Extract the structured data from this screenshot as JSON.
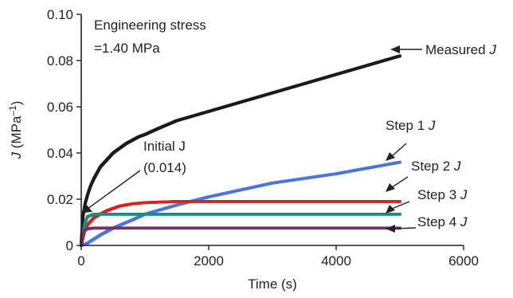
{
  "chart_data": {
    "type": "scatter",
    "xlabel": "Time (s)",
    "ylabel": {
      "symbol": "J",
      "rest": " (MPa",
      "sup": "–1",
      "close": ")"
    },
    "xlim": [
      0,
      6000
    ],
    "ylim": [
      0,
      0.1
    ],
    "x_ticks": [
      {
        "value": 0,
        "label": "0"
      },
      {
        "value": 2000,
        "label": "2000"
      },
      {
        "value": 4000,
        "label": "4000"
      },
      {
        "value": 6000,
        "label": "6000"
      }
    ],
    "y_ticks": [
      {
        "value": 0,
        "label": "0"
      },
      {
        "value": 0.02,
        "label": "0.02"
      },
      {
        "value": 0.04,
        "label": "0.04"
      },
      {
        "value": 0.06,
        "label": "0.06"
      },
      {
        "value": 0.08,
        "label": "0.08"
      },
      {
        "value": 0.1,
        "label": "0.10"
      }
    ],
    "grid": false,
    "annotations": {
      "stress_line1": "Engineering stress",
      "stress_line2": "=1.40 MPa",
      "initial_line1": "Initial J",
      "initial_line2": "(0.014)"
    },
    "series": [
      {
        "name": "Measured J",
        "label_text": "Measured ",
        "label_italic": "J",
        "color": "#1a1a1a",
        "points": [
          [
            0,
            0.001
          ],
          [
            10,
            0.006
          ],
          [
            30,
            0.013
          ],
          [
            60,
            0.018
          ],
          [
            100,
            0.022
          ],
          [
            150,
            0.026
          ],
          [
            200,
            0.029
          ],
          [
            300,
            0.034
          ],
          [
            400,
            0.037
          ],
          [
            500,
            0.04
          ],
          [
            700,
            0.044
          ],
          [
            900,
            0.047
          ],
          [
            1000,
            0.048
          ],
          [
            1200,
            0.0505
          ],
          [
            1500,
            0.054
          ],
          [
            2000,
            0.058
          ],
          [
            2500,
            0.062
          ],
          [
            3000,
            0.066
          ],
          [
            3500,
            0.07
          ],
          [
            4000,
            0.074
          ],
          [
            4500,
            0.078
          ],
          [
            5000,
            0.082
          ]
        ],
        "label_value": [
          5000,
          0.083
        ]
      },
      {
        "name": "Step 1 J",
        "label_text": "Step 1 ",
        "label_italic": "J",
        "color": "#4a74e0",
        "points": [
          [
            0,
            0.0
          ],
          [
            100,
            0.001
          ],
          [
            300,
            0.0045
          ],
          [
            500,
            0.0075
          ],
          [
            800,
            0.011
          ],
          [
            1000,
            0.0135
          ],
          [
            1500,
            0.0175
          ],
          [
            2000,
            0.021
          ],
          [
            2500,
            0.024
          ],
          [
            3000,
            0.027
          ],
          [
            3500,
            0.029
          ],
          [
            4000,
            0.031
          ],
          [
            4500,
            0.0335
          ],
          [
            5000,
            0.036
          ]
        ],
        "label_value": [
          5000,
          0.037
        ]
      },
      {
        "name": "Step 2 J",
        "label_text": "Step 2 ",
        "label_italic": "J",
        "color": "#d9221e",
        "points": [
          [
            0,
            0.0
          ],
          [
            50,
            0.006
          ],
          [
            100,
            0.009
          ],
          [
            200,
            0.012
          ],
          [
            400,
            0.015
          ],
          [
            600,
            0.017
          ],
          [
            800,
            0.018
          ],
          [
            1000,
            0.0185
          ],
          [
            1500,
            0.019
          ],
          [
            2000,
            0.019
          ],
          [
            5000,
            0.019
          ]
        ],
        "label_value": [
          5000,
          0.019
        ]
      },
      {
        "name": "Step 3 J",
        "label_text": "Step 3 ",
        "label_italic": "J",
        "color": "#1a8c83",
        "points": [
          [
            0,
            0.0
          ],
          [
            30,
            0.006
          ],
          [
            60,
            0.01
          ],
          [
            100,
            0.0125
          ],
          [
            200,
            0.0135
          ],
          [
            400,
            0.0135
          ],
          [
            5000,
            0.0135
          ]
        ],
        "label_value": [
          5000,
          0.0135
        ]
      },
      {
        "name": "Step 4 J",
        "label_text": "Step 4 ",
        "label_italic": "J",
        "color": "#7a2d6b",
        "points": [
          [
            0,
            0.0
          ],
          [
            20,
            0.004
          ],
          [
            50,
            0.0065
          ],
          [
            100,
            0.0072
          ],
          [
            200,
            0.0075
          ],
          [
            5000,
            0.0075
          ]
        ],
        "label_value": [
          5000,
          0.0075
        ]
      }
    ]
  }
}
